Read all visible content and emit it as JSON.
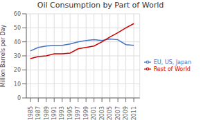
{
  "chart_data": {
    "type": "line",
    "title": "Oil Consumption by Part of World",
    "ylabel": "Million Barrels per Day",
    "x": [
      1985,
      1987,
      1989,
      1991,
      1993,
      1995,
      1997,
      1999,
      2001,
      2003,
      2005,
      2007,
      2009,
      2011
    ],
    "series": [
      {
        "name": "EU, US, Japan",
        "color": "#4472c4",
        "values": [
          33.5,
          36.0,
          37.0,
          37.5,
          37.5,
          38.5,
          40.0,
          41.0,
          41.5,
          41.0,
          42.0,
          41.5,
          38.0,
          37.5
        ]
      },
      {
        "name": "Rest of World",
        "color": "#cc0000",
        "values": [
          28.0,
          29.5,
          30.0,
          31.5,
          31.5,
          32.0,
          35.0,
          36.0,
          37.0,
          40.0,
          43.5,
          46.5,
          50.0,
          53.0
        ]
      }
    ],
    "xlim": [
      1984,
      2012.5
    ],
    "xticks": [
      1985,
      1987,
      1989,
      1991,
      1993,
      1995,
      1997,
      1999,
      2001,
      2003,
      2005,
      2007,
      2009,
      2011
    ],
    "ylim": [
      0,
      60
    ],
    "yticks": [
      0,
      10,
      20,
      30,
      40,
      50,
      60
    ],
    "grid": true,
    "legend": "right"
  }
}
